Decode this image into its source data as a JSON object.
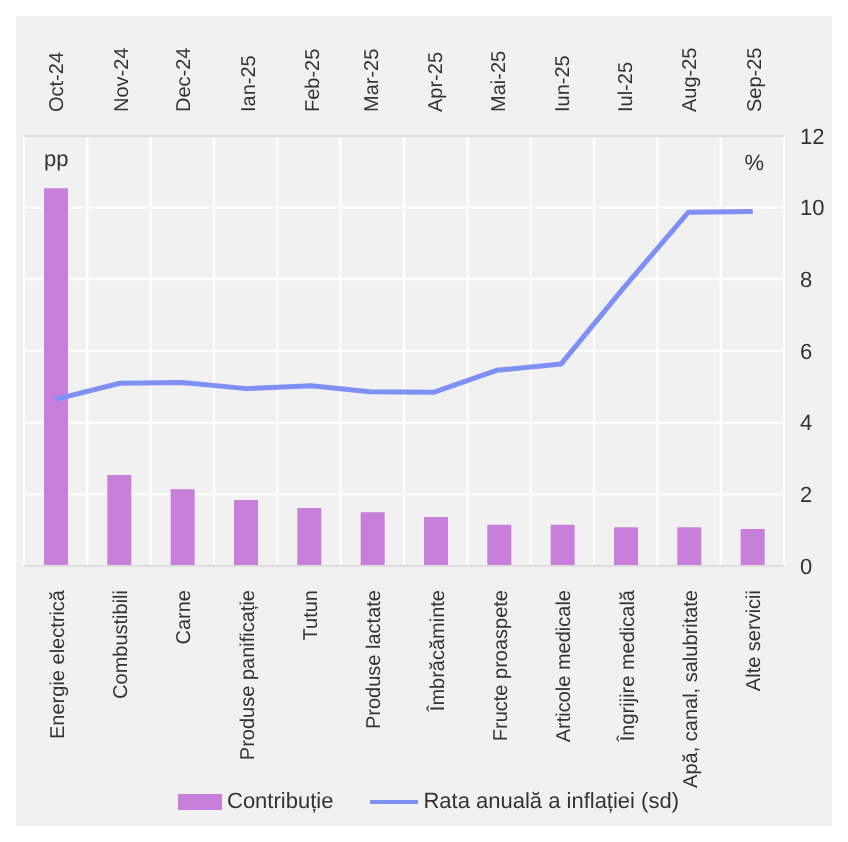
{
  "chart_data": {
    "type": "bar",
    "categories": [
      "Energie electrică",
      "Combustibili",
      "Carne",
      "Produse panificație",
      "Tutun",
      "Produse lactate",
      "Îmbrăcăminte",
      "Fructe proaspete",
      "Articole medicale",
      "Îngrijire medicală",
      "Apă, canal, salubritate",
      "Alte servicii"
    ],
    "ylabel": "pp",
    "annotations": [
      "%"
    ],
    "ylim": [
      0,
      12
    ],
    "yticks": [
      0,
      2,
      4,
      6,
      8,
      10,
      12
    ],
    "x2lim": [
      "2024-09-16",
      "2025-09-16"
    ],
    "x2ticks": [
      {
        "value": "2024-10",
        "label": "Oct-24"
      },
      {
        "value": "2024-11",
        "label": "Nov-24"
      },
      {
        "value": "2024-12",
        "label": "Dec-24"
      },
      {
        "value": "2025-01",
        "label": "Ian-25"
      },
      {
        "value": "2025-02",
        "label": "Feb-25"
      },
      {
        "value": "2025-03",
        "label": "Mar-25"
      },
      {
        "value": "2025-04",
        "label": "Apr-25"
      },
      {
        "value": "2025-05",
        "label": "Mai-25"
      },
      {
        "value": "2025-06",
        "label": "Iun-25"
      },
      {
        "value": "2025-07",
        "label": "Iul-25"
      },
      {
        "value": "2025-08",
        "label": "Aug-25"
      },
      {
        "value": "2025-09",
        "label": "Sep-25"
      }
    ],
    "series": [
      {
        "name": "Contribuție",
        "color": "#c77fd9",
        "values": [
          10.54,
          2.54,
          2.14,
          1.84,
          1.62,
          1.5,
          1.37,
          1.15,
          1.15,
          1.08,
          1.08,
          1.03
        ]
      },
      {
        "name": "Rata anuală a inflației (sd)",
        "type": "line",
        "axis": "x2",
        "color": "#7f90f5",
        "x": [
          "2024-10",
          "2024-11",
          "2024-12",
          "2025-01",
          "2025-02",
          "2025-03",
          "2025-04",
          "2025-05",
          "2025-06",
          "2025-07",
          "2025-08",
          "2025-09"
        ],
        "values": [
          4.65,
          5.1,
          5.12,
          4.95,
          5.03,
          4.86,
          4.85,
          5.46,
          5.64,
          7.76,
          9.87,
          9.89
        ]
      }
    ],
    "grid": true,
    "legend": "bottom",
    "marker": "none",
    "line_style": "solid"
  }
}
